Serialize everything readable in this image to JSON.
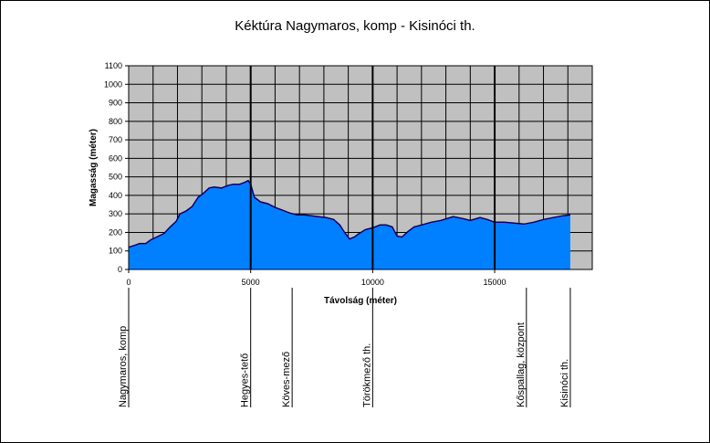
{
  "chart_data": {
    "type": "area",
    "title": "Kéktúra Nagymaros, komp - Kisinóci th.",
    "xlabel": "Távolság (méter)",
    "ylabel": "Magasság (méter)",
    "xlim": [
      0,
      19000
    ],
    "ylim": [
      0,
      1100
    ],
    "x_ticks": [
      0,
      5000,
      10000,
      15000
    ],
    "x_tick_labels": [
      "0",
      "5000",
      "10000",
      "15000"
    ],
    "y_ticks": [
      0,
      100,
      200,
      300,
      400,
      500,
      600,
      700,
      800,
      900,
      1000,
      1100
    ],
    "y_tick_labels": [
      "0",
      "100",
      "200",
      "300",
      "400",
      "500",
      "600",
      "700",
      "800",
      "900",
      "1000",
      "1100"
    ],
    "grid": true,
    "legend": "none",
    "colors": {
      "fill": "#0080ff",
      "line": "#000080",
      "plot_bg": "#c0c0c0",
      "grid": "#000000"
    },
    "series": [
      {
        "x": [
          0,
          250,
          450,
          700,
          900,
          1150,
          1450,
          1700,
          1950,
          2100,
          2350,
          2600,
          2850,
          3050,
          3300,
          3500,
          3800,
          4100,
          4300,
          4550,
          4750,
          4900,
          5000,
          5150,
          5400,
          5700,
          6000,
          6300,
          6600,
          6900,
          7200,
          7500,
          7800,
          8100,
          8400,
          8650,
          8850,
          9050,
          9250,
          9400,
          9700,
          10000,
          10300,
          10550,
          10800,
          11000,
          11200,
          11450,
          11700,
          12000,
          12400,
          12800,
          13300,
          13700,
          14000,
          14400,
          14700,
          15000,
          15400,
          15800,
          16200,
          16600,
          17000,
          17400,
          17800,
          18100
        ],
        "y": [
          120,
          130,
          140,
          140,
          160,
          175,
          195,
          230,
          260,
          300,
          315,
          340,
          390,
          410,
          440,
          445,
          440,
          455,
          460,
          460,
          470,
          480,
          460,
          390,
          365,
          355,
          335,
          320,
          305,
          295,
          295,
          290,
          285,
          280,
          270,
          240,
          200,
          165,
          175,
          190,
          215,
          225,
          240,
          240,
          230,
          180,
          175,
          205,
          230,
          240,
          255,
          265,
          285,
          275,
          265,
          280,
          270,
          255,
          255,
          250,
          245,
          255,
          270,
          280,
          290,
          295
        ]
      }
    ],
    "markers": [
      {
        "x": 0,
        "label": "Nagymaros, komp"
      },
      {
        "x": 5000,
        "label": "Hegyes-tető"
      },
      {
        "x": 6700,
        "label": "Köves-mező"
      },
      {
        "x": 10000,
        "label": "Törökmező th."
      },
      {
        "x": 16300,
        "label": "Kőspallag, központ"
      },
      {
        "x": 18100,
        "label": "Kisinóci th."
      }
    ],
    "heavy_vlines": [
      5000,
      10000,
      15000
    ]
  }
}
